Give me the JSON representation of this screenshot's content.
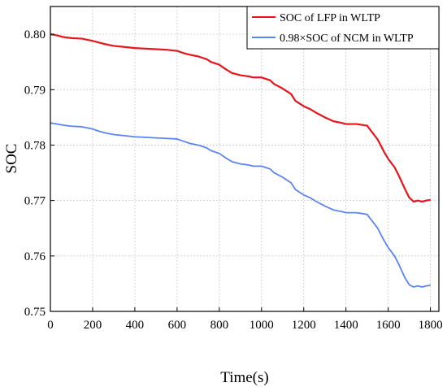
{
  "chart_data": {
    "type": "line",
    "xlabel": "Time(s)",
    "ylabel": "SOC",
    "xlim": [
      0,
      1840
    ],
    "ylim": [
      0.75,
      0.805
    ],
    "xticks": [
      0,
      200,
      400,
      600,
      800,
      1000,
      1200,
      1400,
      1600,
      1800
    ],
    "yticks": [
      0.75,
      0.76,
      0.77,
      0.78,
      0.79,
      0.8
    ],
    "xtick_labels": [
      "0",
      "200",
      "400",
      "600",
      "800",
      "1000",
      "1200",
      "1400",
      "1600",
      "1800"
    ],
    "ytick_labels": [
      "0.75",
      "0.76",
      "0.77",
      "0.78",
      "0.79",
      "0.80"
    ],
    "grid": true,
    "legend_position": "top-right",
    "series": [
      {
        "name": "SOC of LFP in WLTP",
        "color": "#e8141c",
        "x": [
          0,
          30,
          60,
          100,
          150,
          200,
          230,
          260,
          300,
          350,
          400,
          450,
          500,
          550,
          600,
          630,
          660,
          700,
          740,
          760,
          800,
          830,
          860,
          900,
          940,
          960,
          1000,
          1040,
          1060,
          1100,
          1140,
          1160,
          1200,
          1230,
          1260,
          1300,
          1340,
          1380,
          1400,
          1450,
          1500,
          1520,
          1550,
          1580,
          1600,
          1630,
          1650,
          1680,
          1700,
          1720,
          1740,
          1760,
          1780,
          1800
        ],
        "y": [
          0.8,
          0.7998,
          0.7995,
          0.7993,
          0.7992,
          0.7988,
          0.7985,
          0.7982,
          0.7979,
          0.7977,
          0.7975,
          0.7974,
          0.7973,
          0.7972,
          0.797,
          0.7966,
          0.7963,
          0.796,
          0.7955,
          0.795,
          0.7945,
          0.7937,
          0.793,
          0.7926,
          0.7924,
          0.7922,
          0.7922,
          0.7917,
          0.791,
          0.7902,
          0.7892,
          0.788,
          0.787,
          0.7865,
          0.7858,
          0.785,
          0.7843,
          0.784,
          0.7838,
          0.7838,
          0.7835,
          0.7825,
          0.781,
          0.7788,
          0.7775,
          0.776,
          0.7745,
          0.772,
          0.7705,
          0.7698,
          0.77,
          0.7698,
          0.77,
          0.7701
        ]
      },
      {
        "name": "0.98×SOC of NCM in WLTP",
        "color": "#5b84f0",
        "x": [
          0,
          30,
          60,
          100,
          150,
          200,
          230,
          260,
          300,
          350,
          400,
          450,
          500,
          550,
          600,
          630,
          660,
          700,
          740,
          760,
          800,
          830,
          860,
          900,
          940,
          960,
          1000,
          1040,
          1060,
          1100,
          1140,
          1160,
          1200,
          1230,
          1260,
          1300,
          1340,
          1380,
          1400,
          1450,
          1500,
          1520,
          1550,
          1580,
          1600,
          1630,
          1650,
          1680,
          1700,
          1720,
          1740,
          1760,
          1780,
          1800
        ],
        "y": [
          0.784,
          0.7838,
          0.7836,
          0.7834,
          0.7833,
          0.7829,
          0.7825,
          0.7822,
          0.7819,
          0.7817,
          0.7815,
          0.7814,
          0.7813,
          0.7812,
          0.7811,
          0.7807,
          0.7803,
          0.78,
          0.7795,
          0.779,
          0.7785,
          0.7777,
          0.777,
          0.7766,
          0.7764,
          0.7762,
          0.7762,
          0.7757,
          0.775,
          0.7742,
          0.7732,
          0.772,
          0.771,
          0.7705,
          0.7698,
          0.769,
          0.7683,
          0.768,
          0.7678,
          0.7678,
          0.7675,
          0.7665,
          0.765,
          0.7628,
          0.7615,
          0.76,
          0.7585,
          0.756,
          0.7548,
          0.7544,
          0.7546,
          0.7544,
          0.7546,
          0.7547
        ]
      }
    ]
  }
}
